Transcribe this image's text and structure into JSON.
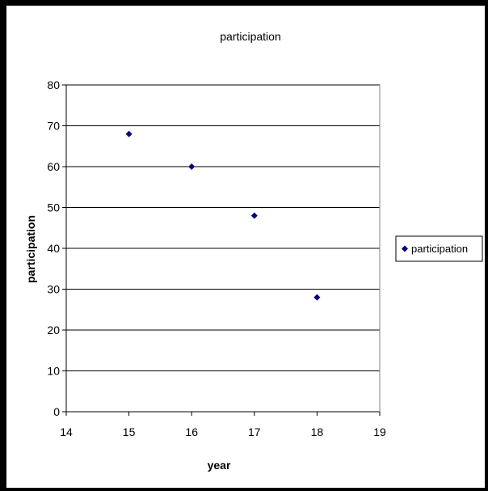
{
  "chart_data": {
    "type": "scatter",
    "title": "participation",
    "xlabel": "year",
    "ylabel": "participation",
    "xlim": [
      14,
      19
    ],
    "ylim": [
      0,
      80
    ],
    "x_ticks": [
      14,
      15,
      16,
      17,
      18,
      19
    ],
    "y_ticks": [
      0,
      10,
      20,
      30,
      40,
      50,
      60,
      70,
      80
    ],
    "grid": "horizontal major gridlines",
    "legend_position": "right",
    "series": [
      {
        "name": "participation",
        "color": "#000080",
        "marker": "diamond",
        "x": [
          15,
          16,
          17,
          18
        ],
        "y": [
          68,
          60,
          48,
          28
        ]
      }
    ]
  }
}
